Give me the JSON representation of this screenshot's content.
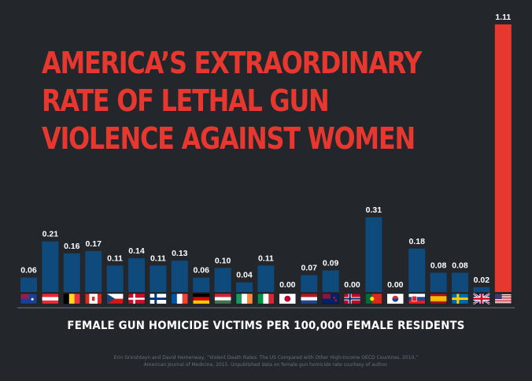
{
  "title_lines": [
    "AMERICA’S EXTRAORDINARY",
    "RATE OF LETHAL GUN",
    "VIOLENCE AGAINST WOMEN"
  ],
  "chart_data": {
    "type": "bar",
    "categories": [
      "Australia",
      "Austria",
      "Belgium",
      "Canada",
      "Czech Republic",
      "Denmark",
      "Finland",
      "France",
      "Germany",
      "Hungary",
      "Ireland",
      "Italy",
      "Japan",
      "Netherlands",
      "New Zealand",
      "Norway",
      "Portugal",
      "South Korea",
      "Slovakia",
      "Spain",
      "Sweden",
      "United Kingdom",
      "United States"
    ],
    "values": [
      0.06,
      0.21,
      0.16,
      0.17,
      0.11,
      0.14,
      0.11,
      0.13,
      0.06,
      0.1,
      0.04,
      0.11,
      0.0,
      0.07,
      0.09,
      0.0,
      0.31,
      0.0,
      0.18,
      0.08,
      0.08,
      0.02,
      1.11
    ],
    "value_labels": [
      "0.06",
      "0.21",
      "0.16",
      "0.17",
      "0.11",
      "0.14",
      "0.11",
      "0.13",
      "0.06",
      "0.10",
      "0.04",
      "0.11",
      "0.00",
      "0.07",
      "0.09",
      "0.00",
      "0.31",
      "0.00",
      "0.18",
      "0.08",
      "0.08",
      "0.02",
      "1.11"
    ],
    "highlight_category": "United States",
    "xlabel": "FEMALE GUN HOMICIDE VICTIMS PER 100,000 FEMALE RESIDENTS",
    "ylim": [
      0,
      1.11
    ],
    "grid": false,
    "legend": "none"
  },
  "source_lines": [
    "Erin Grinshteyn and David Hemenway, “Violent Death Rates: The US Compared with Other High-Income OECD Countries, 2010,”",
    "American Journal of Medicine, 2015.  Unpublished data on female gun homicide rate courtesy of author."
  ],
  "colors": {
    "background": "#23272c",
    "bar": "#0f4a7d",
    "highlight_bar": "#e8372f",
    "title": "#e8372f",
    "label": "#ffffff",
    "axis_line": "#8a9098"
  }
}
